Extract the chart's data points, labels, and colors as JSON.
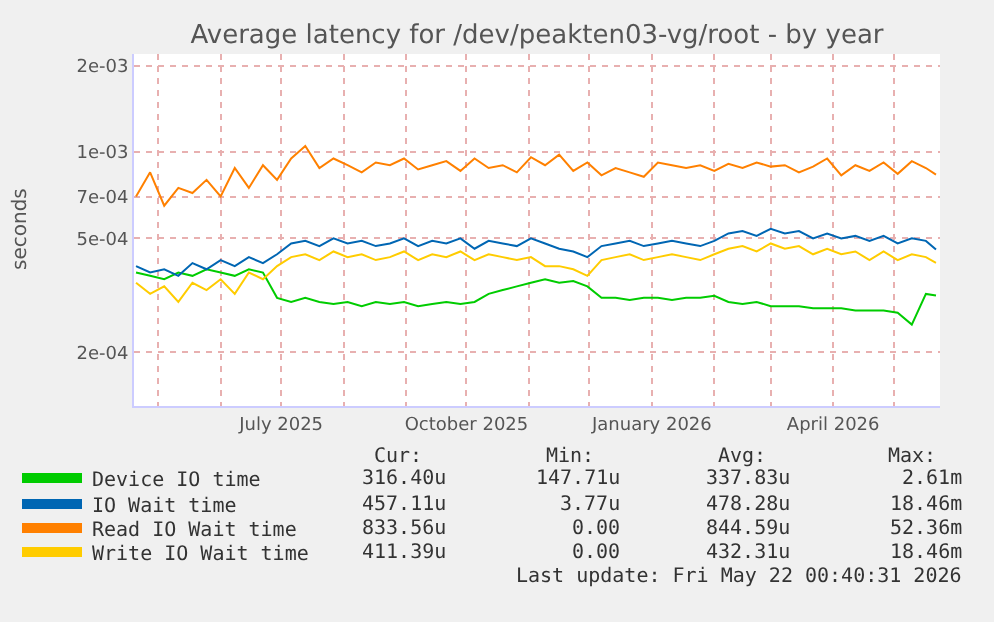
{
  "chart_data": {
    "type": "line",
    "title": "Average latency for /dev/peakten03-vg/root - by year",
    "ylabel": "seconds",
    "log": "y",
    "grid": true,
    "legend": "bottom",
    "line_style": "solid",
    "marker": "none",
    "x": [
      "2025-04-20",
      "2025-04-27",
      "2025-05-04",
      "2025-05-11",
      "2025-05-18",
      "2025-05-25",
      "2025-06-01",
      "2025-06-08",
      "2025-06-15",
      "2025-06-22",
      "2025-06-29",
      "2025-07-06",
      "2025-07-13",
      "2025-07-20",
      "2025-07-27",
      "2025-08-03",
      "2025-08-10",
      "2025-08-17",
      "2025-08-24",
      "2025-08-31",
      "2025-09-07",
      "2025-09-14",
      "2025-09-21",
      "2025-09-28",
      "2025-10-05",
      "2025-10-12",
      "2025-10-19",
      "2025-10-26",
      "2025-11-02",
      "2025-11-09",
      "2025-11-16",
      "2025-11-23",
      "2025-11-30",
      "2025-12-07",
      "2025-12-14",
      "2025-12-21",
      "2025-12-28",
      "2026-01-04",
      "2026-01-11",
      "2026-01-18",
      "2026-01-25",
      "2026-02-01",
      "2026-02-08",
      "2026-02-15",
      "2026-02-22",
      "2026-03-01",
      "2026-03-08",
      "2026-03-15",
      "2026-03-22",
      "2026-03-29",
      "2026-04-05",
      "2026-04-12",
      "2026-04-19",
      "2026-04-26",
      "2026-05-03",
      "2026-05-10",
      "2026-05-17",
      "2026-05-22"
    ],
    "xlim": [
      "2025-04-19",
      "2026-05-24"
    ],
    "xticks": [
      {
        "value": "2025-05-01",
        "label": null
      },
      {
        "value": "2025-06-01",
        "label": null
      },
      {
        "value": "2025-07-01",
        "label": "July 2025"
      },
      {
        "value": "2025-08-01",
        "label": null
      },
      {
        "value": "2025-09-01",
        "label": null
      },
      {
        "value": "2025-10-01",
        "label": "October 2025"
      },
      {
        "value": "2025-11-01",
        "label": null
      },
      {
        "value": "2025-12-01",
        "label": null
      },
      {
        "value": "2026-01-01",
        "label": "January 2026"
      },
      {
        "value": "2026-02-01",
        "label": null
      },
      {
        "value": "2026-03-01",
        "label": null
      },
      {
        "value": "2026-04-01",
        "label": "April 2026"
      },
      {
        "value": "2026-05-01",
        "label": null
      }
    ],
    "ylim": [
      0.00013,
      0.0022
    ],
    "yticks": [
      {
        "value": 0.0002,
        "label": "2e-04"
      },
      {
        "value": 0.0005,
        "label": "5e-04"
      },
      {
        "value": 0.0007,
        "label": "7e-04"
      },
      {
        "value": 0.001,
        "label": "1e-03"
      },
      {
        "value": 0.002,
        "label": "2e-03"
      }
    ],
    "series": [
      {
        "name": "Device IO time",
        "color": "#00cc00",
        "values": [
          0.00038,
          0.00037,
          0.00036,
          0.00038,
          0.00037,
          0.00039,
          0.00038,
          0.00037,
          0.00039,
          0.00038,
          0.00031,
          0.0003,
          0.00031,
          0.0003,
          0.000295,
          0.0003,
          0.00029,
          0.0003,
          0.000295,
          0.0003,
          0.00029,
          0.000295,
          0.0003,
          0.000295,
          0.0003,
          0.00032,
          0.00033,
          0.00034,
          0.00035,
          0.00036,
          0.00035,
          0.000355,
          0.00034,
          0.00031,
          0.00031,
          0.000305,
          0.00031,
          0.00031,
          0.000305,
          0.00031,
          0.00031,
          0.000315,
          0.0003,
          0.000295,
          0.0003,
          0.00029,
          0.00029,
          0.00029,
          0.000285,
          0.000285,
          0.000285,
          0.00028,
          0.00028,
          0.00028,
          0.000275,
          0.00025,
          0.00032,
          0.000316
        ]
      },
      {
        "name": "IO Wait time",
        "color": "#0066b3",
        "values": [
          0.0004,
          0.00038,
          0.00039,
          0.00037,
          0.00041,
          0.00039,
          0.00042,
          0.0004,
          0.00043,
          0.00041,
          0.00044,
          0.00048,
          0.00049,
          0.00047,
          0.0005,
          0.00048,
          0.00049,
          0.00047,
          0.00048,
          0.0005,
          0.00047,
          0.00049,
          0.00048,
          0.0005,
          0.00046,
          0.00049,
          0.00048,
          0.00047,
          0.0005,
          0.00048,
          0.00046,
          0.00045,
          0.00043,
          0.00047,
          0.00048,
          0.00049,
          0.00047,
          0.00048,
          0.00049,
          0.00048,
          0.00047,
          0.00049,
          0.00052,
          0.00053,
          0.00051,
          0.00054,
          0.00052,
          0.00053,
          0.0005,
          0.00052,
          0.0005,
          0.00051,
          0.00049,
          0.00051,
          0.00048,
          0.0005,
          0.00049,
          0.000457
        ]
      },
      {
        "name": "Read IO Wait time",
        "color": "#ff8000",
        "values": [
          0.0007,
          0.00085,
          0.00065,
          0.00075,
          0.00072,
          0.0008,
          0.0007,
          0.00088,
          0.00075,
          0.0009,
          0.0008,
          0.00095,
          0.00105,
          0.00088,
          0.00095,
          0.0009,
          0.00085,
          0.00092,
          0.0009,
          0.00095,
          0.00087,
          0.0009,
          0.00093,
          0.00086,
          0.00095,
          0.00088,
          0.0009,
          0.00085,
          0.00096,
          0.0009,
          0.00098,
          0.00086,
          0.00092,
          0.00083,
          0.00088,
          0.00085,
          0.00082,
          0.00092,
          0.0009,
          0.00088,
          0.0009,
          0.00086,
          0.00091,
          0.00088,
          0.00092,
          0.00089,
          0.0009,
          0.00085,
          0.00089,
          0.00095,
          0.00083,
          0.0009,
          0.00086,
          0.00092,
          0.00084,
          0.00093,
          0.00088,
          0.000834
        ]
      },
      {
        "name": "Write IO Wait time",
        "color": "#ffcc00",
        "values": [
          0.00035,
          0.00032,
          0.00034,
          0.0003,
          0.00035,
          0.00033,
          0.00036,
          0.00032,
          0.00038,
          0.00036,
          0.0004,
          0.00043,
          0.00044,
          0.00042,
          0.00045,
          0.00043,
          0.00044,
          0.00042,
          0.00043,
          0.00045,
          0.00042,
          0.00044,
          0.00043,
          0.00045,
          0.00042,
          0.00044,
          0.00043,
          0.00042,
          0.00043,
          0.0004,
          0.0004,
          0.00039,
          0.00037,
          0.00042,
          0.00043,
          0.00044,
          0.00042,
          0.00043,
          0.00044,
          0.00043,
          0.00042,
          0.00044,
          0.00046,
          0.00047,
          0.00045,
          0.00048,
          0.00046,
          0.00047,
          0.00044,
          0.00046,
          0.00044,
          0.00045,
          0.00042,
          0.00045,
          0.00042,
          0.00044,
          0.00043,
          0.000411
        ]
      }
    ],
    "annotations": [
      "Cur:",
      "Min:",
      "Avg:",
      "Max:",
      "316.40u",
      "147.71u",
      "337.83u",
      "2.61m",
      "457.11u",
      "3.77u",
      "478.28u",
      "18.46m",
      "833.56u",
      "0.00",
      "844.59u",
      "52.36m",
      "411.39u",
      "0.00",
      "432.31u",
      "18.46m",
      "Last update: Fri May 22 00:40:31 2026"
    ]
  }
}
